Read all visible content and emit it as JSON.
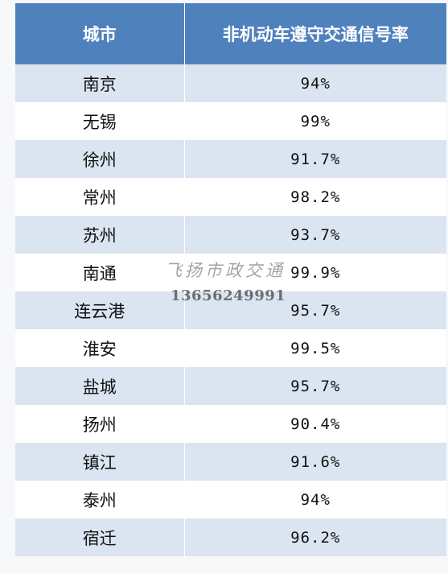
{
  "table": {
    "headers": [
      "城市",
      "非机动车遵守交通信号率"
    ],
    "rows": [
      {
        "city": "南京",
        "rate": "94%"
      },
      {
        "city": "无锡",
        "rate": "99%"
      },
      {
        "city": "徐州",
        "rate": "91.7%"
      },
      {
        "city": "常州",
        "rate": "98.2%"
      },
      {
        "city": "苏州",
        "rate": "93.7%"
      },
      {
        "city": "南通",
        "rate": "99.9%"
      },
      {
        "city": "连云港",
        "rate": "95.7%"
      },
      {
        "city": "淮安",
        "rate": "99.5%"
      },
      {
        "city": "盐城",
        "rate": "95.7%"
      },
      {
        "city": "扬州",
        "rate": "90.4%"
      },
      {
        "city": "镇江",
        "rate": "91.6%"
      },
      {
        "city": "泰州",
        "rate": "94%"
      },
      {
        "city": "宿迁",
        "rate": "96.2%"
      }
    ]
  },
  "watermark": {
    "name": "飞扬市政交通",
    "phone": "13656249991"
  },
  "colors": {
    "header_bg": "#4f81bd",
    "band_bg": "#dbe5f1",
    "header_text": "#ffffff"
  }
}
